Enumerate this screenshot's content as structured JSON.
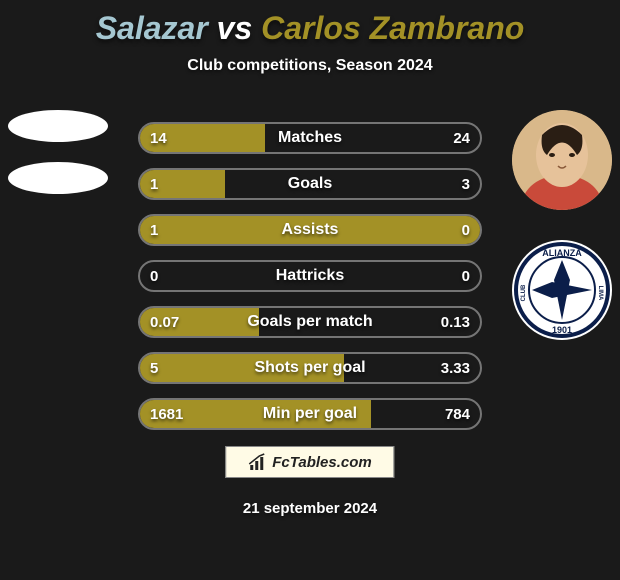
{
  "title_left": "Salazar",
  "title_vs": "vs",
  "title_right": "Carlos Zambrano",
  "title_color_left": "#a5c7d1",
  "title_color_right": "#a39126",
  "subtitle": "Club competitions, Season 2024",
  "background_color": "#1a1a1a",
  "bar_fill_color": "#a39126",
  "bar_border_color": "rgba(255,255,255,0.4)",
  "stats": [
    {
      "label": "Matches",
      "left_value": "14",
      "right_value": "24",
      "left_pct": 36.8,
      "right_pct": 0
    },
    {
      "label": "Goals",
      "left_value": "1",
      "right_value": "3",
      "left_pct": 25,
      "right_pct": 0
    },
    {
      "label": "Assists",
      "left_value": "1",
      "right_value": "0",
      "left_pct": 80,
      "right_pct": 20
    },
    {
      "label": "Hattricks",
      "left_value": "0",
      "right_value": "0",
      "left_pct": 0,
      "right_pct": 0
    },
    {
      "label": "Goals per match",
      "left_value": "0.07",
      "right_value": "0.13",
      "left_pct": 35,
      "right_pct": 0
    },
    {
      "label": "Shots per goal",
      "left_value": "5",
      "right_value": "3.33",
      "left_pct": 60,
      "right_pct": 0
    },
    {
      "label": "Min per goal",
      "left_value": "1681",
      "right_value": "784",
      "left_pct": 68,
      "right_pct": 0
    }
  ],
  "fctables_label": "FcTables.com",
  "date": "21 september 2024",
  "club_right": {
    "name": "Alianza Lima",
    "bg_color": "#ffffff",
    "ring_color": "#0b1e4a",
    "text": "ALIANZA",
    "subtext": "CLUB   LIMA",
    "year": "1901"
  }
}
